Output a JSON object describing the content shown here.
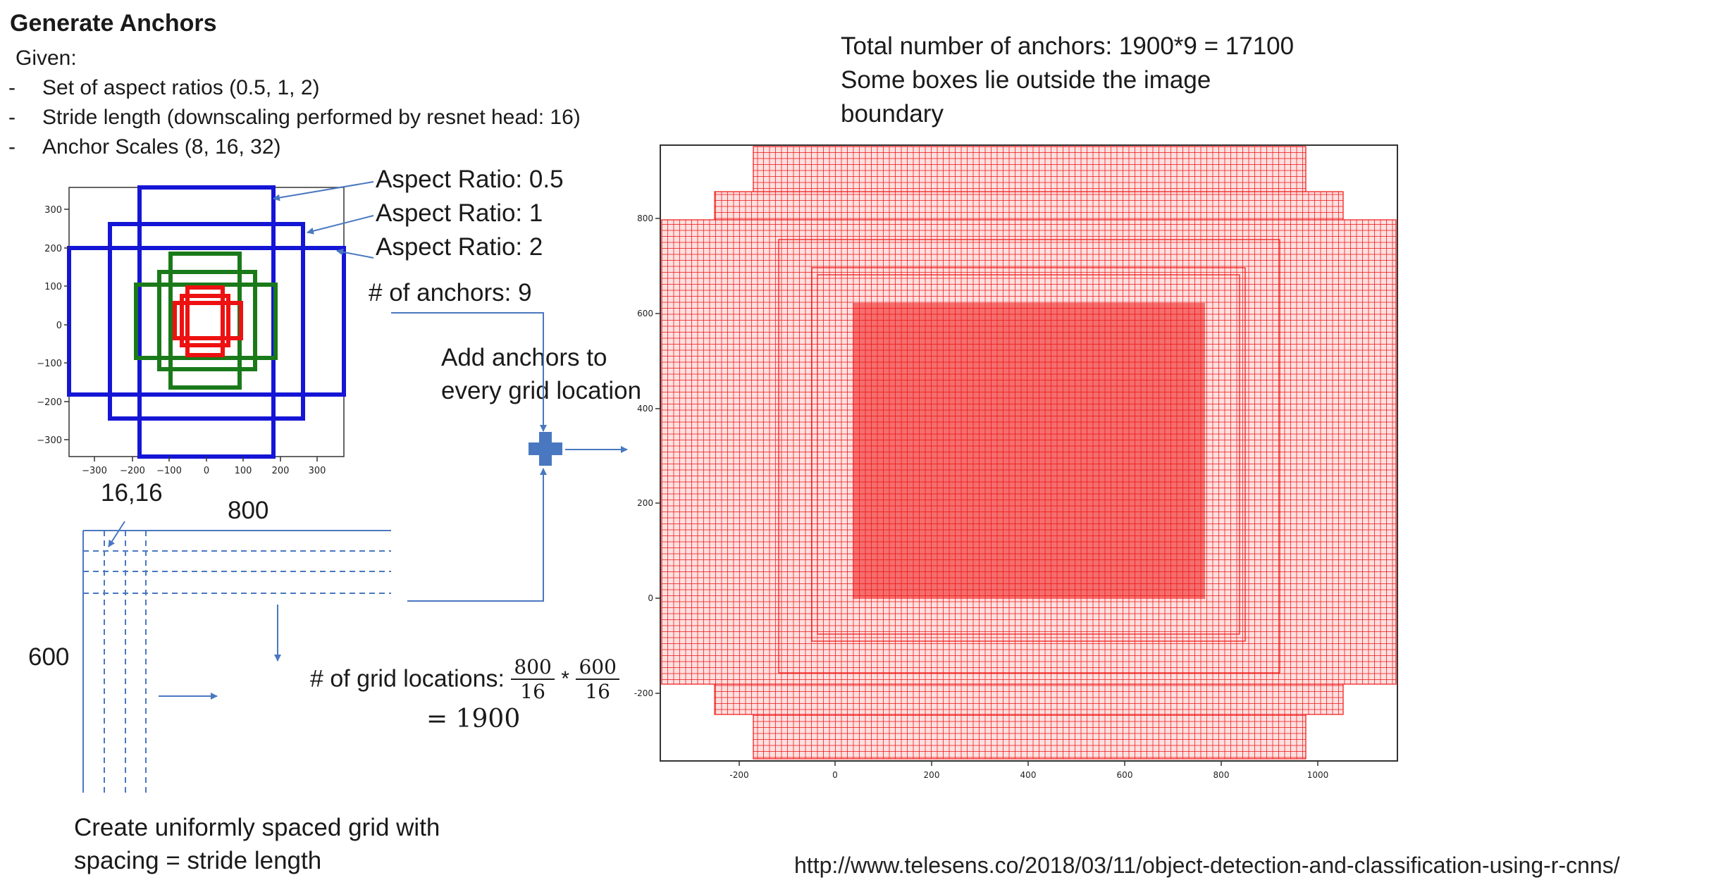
{
  "title": "Generate Anchors",
  "given": "Given:",
  "bullets": [
    "Set of aspect ratios (0.5, 1, 2)",
    "Stride length (downscaling performed by resnet head: 16)",
    "Anchor Scales (8, 16, 32)"
  ],
  "bullet_dash": "-",
  "labels": {
    "ar_05": "Aspect Ratio: 0.5",
    "ar_1": "Aspect Ratio: 1",
    "ar_2": "Aspect Ratio: 2",
    "num_anchors": "# of anchors: 9",
    "add_anchors_1": "Add anchors to",
    "add_anchors_2": "every grid location",
    "coord": "16,16",
    "width": "800",
    "height": "600",
    "grid_locations": "# of grid locations:",
    "frac1_num": "800",
    "frac1_den": "16",
    "times": "*",
    "frac2_num": "600",
    "frac2_den": "16",
    "grid_result": "= 1900",
    "create_1": "Create uniformly spaced grid with",
    "create_2": "spacing = stride length",
    "total_1": "Total number of anchors: 1900*9 = 17100",
    "total_2": "Some boxes lie outside the image",
    "total_3": "boundary",
    "url": "http://www.telesens.co/2018/03/11/object-detection-and-classification-using-r-cnns/"
  },
  "small_plot": {
    "x_ticks": [
      "−300",
      "−200",
      "−100",
      "0",
      "100",
      "200",
      "300"
    ],
    "y_ticks": [
      "300",
      "200",
      "100",
      "0",
      "−100",
      "−200",
      "−300"
    ]
  },
  "big_plot": {
    "x_ticks": [
      "-200",
      "0",
      "200",
      "400",
      "600",
      "800",
      "1000"
    ],
    "y_ticks": [
      "800",
      "600",
      "400",
      "200",
      "0",
      "-200"
    ]
  },
  "colors": {
    "blue": "#1515d6",
    "green": "#1a7a1a",
    "red": "#ee1111",
    "arrow": "#4a78c0"
  }
}
